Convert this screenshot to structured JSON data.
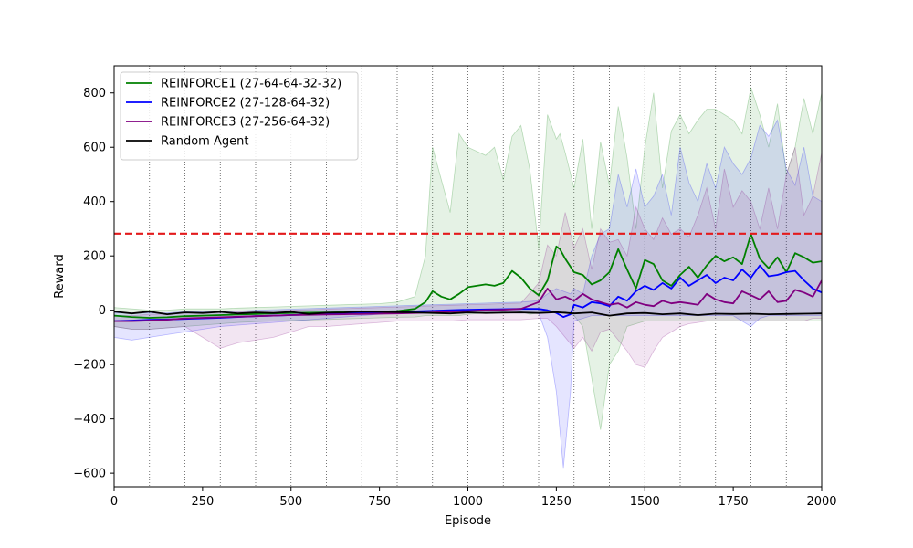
{
  "chart_data": {
    "type": "line",
    "title": "",
    "xlabel": "Episode",
    "ylabel": "Reward",
    "xlim": [
      0,
      2000
    ],
    "ylim": [
      -650,
      900
    ],
    "x_ticks": [
      0,
      250,
      500,
      750,
      1000,
      1250,
      1500,
      1750,
      2000
    ],
    "y_ticks": [
      -600,
      -400,
      -200,
      0,
      200,
      400,
      600,
      800
    ],
    "x_tick_labels": [
      "0",
      "250",
      "500",
      "750",
      "1000",
      "1250",
      "1500",
      "1750",
      "2000"
    ],
    "y_tick_labels": [
      "−600",
      "−400",
      "−200",
      "0",
      "200",
      "400",
      "600",
      "800"
    ],
    "vertical_markers": [
      100,
      200,
      300,
      400,
      500,
      600,
      700,
      800,
      900,
      1000,
      1100,
      1200,
      1300,
      1400,
      1500,
      1600,
      1700,
      1800,
      1900
    ],
    "threshold": 282,
    "legend_position": "upper-left",
    "grid": false,
    "series": [
      {
        "name": "REINFORCE1 (27-64-64-32-32)",
        "color": "#008000",
        "x": [
          0,
          50,
          100,
          150,
          200,
          250,
          300,
          350,
          400,
          450,
          500,
          550,
          600,
          650,
          700,
          750,
          800,
          850,
          880,
          900,
          925,
          950,
          975,
          1000,
          1050,
          1075,
          1100,
          1125,
          1150,
          1175,
          1200,
          1225,
          1250,
          1260,
          1275,
          1300,
          1325,
          1350,
          1375,
          1400,
          1425,
          1450,
          1475,
          1500,
          1525,
          1550,
          1575,
          1600,
          1625,
          1650,
          1675,
          1700,
          1725,
          1750,
          1775,
          1800,
          1825,
          1850,
          1875,
          1900,
          1925,
          1950,
          1975,
          2000
        ],
        "y": [
          -20,
          -25,
          -28,
          -26,
          -22,
          -20,
          -18,
          -16,
          -14,
          -12,
          -10,
          -9,
          -8,
          -7,
          -6,
          -5,
          -3,
          5,
          30,
          70,
          50,
          40,
          60,
          85,
          95,
          90,
          100,
          145,
          120,
          80,
          55,
          110,
          235,
          225,
          190,
          140,
          130,
          95,
          110,
          140,
          225,
          150,
          80,
          185,
          170,
          110,
          90,
          130,
          160,
          120,
          165,
          200,
          180,
          195,
          170,
          280,
          190,
          155,
          195,
          140,
          210,
          195,
          175,
          180
        ],
        "upper": [
          10,
          5,
          0,
          0,
          5,
          5,
          5,
          8,
          10,
          12,
          14,
          16,
          18,
          20,
          22,
          24,
          30,
          50,
          200,
          600,
          480,
          360,
          650,
          600,
          570,
          600,
          480,
          640,
          680,
          520,
          230,
          720,
          630,
          650,
          580,
          450,
          630,
          300,
          620,
          460,
          750,
          560,
          300,
          600,
          800,
          450,
          660,
          720,
          650,
          700,
          740,
          740,
          720,
          700,
          650,
          820,
          720,
          600,
          760,
          500,
          600,
          780,
          650,
          800
        ],
        "lower": [
          -60,
          -70,
          -70,
          -65,
          -60,
          -55,
          -50,
          -45,
          -42,
          -40,
          -38,
          -36,
          -34,
          -32,
          -30,
          -28,
          -26,
          -25,
          -20,
          -20,
          -20,
          -20,
          -20,
          -15,
          -10,
          -10,
          -5,
          -10,
          -5,
          -15,
          -10,
          -10,
          -5,
          -10,
          -5,
          -20,
          -60,
          -250,
          -440,
          -200,
          -150,
          -60,
          -50,
          -40,
          -40,
          -40,
          -40,
          -40,
          -40,
          -40,
          -40,
          -40,
          -40,
          -40,
          -40,
          -40,
          -40,
          -40,
          -40,
          -40,
          -40,
          -40,
          -40,
          -40
        ]
      },
      {
        "name": "REINFORCE2 (27-128-64-32)",
        "color": "#0000ff",
        "x": [
          0,
          50,
          100,
          150,
          200,
          250,
          300,
          350,
          400,
          450,
          500,
          550,
          600,
          650,
          700,
          750,
          800,
          850,
          900,
          950,
          1000,
          1050,
          1100,
          1150,
          1200,
          1225,
          1250,
          1270,
          1290,
          1300,
          1325,
          1350,
          1375,
          1400,
          1425,
          1450,
          1475,
          1500,
          1525,
          1550,
          1575,
          1600,
          1625,
          1650,
          1675,
          1700,
          1725,
          1750,
          1775,
          1800,
          1825,
          1850,
          1875,
          1900,
          1925,
          1950,
          1975,
          2000
        ],
        "y": [
          -40,
          -38,
          -35,
          -34,
          -32,
          -30,
          -28,
          -25,
          -22,
          -20,
          -18,
          -16,
          -14,
          -12,
          -10,
          -8,
          -6,
          -4,
          -2,
          0,
          2,
          3,
          4,
          5,
          5,
          0,
          -10,
          -25,
          -15,
          20,
          10,
          30,
          25,
          15,
          50,
          35,
          70,
          90,
          75,
          100,
          80,
          120,
          90,
          110,
          130,
          100,
          120,
          110,
          150,
          120,
          165,
          125,
          130,
          140,
          145,
          110,
          80,
          65
        ],
        "upper": [
          -10,
          -10,
          -10,
          -10,
          -5,
          -5,
          -5,
          -3,
          0,
          2,
          4,
          6,
          8,
          10,
          12,
          14,
          16,
          18,
          20,
          22,
          24,
          26,
          28,
          30,
          35,
          60,
          80,
          70,
          60,
          80,
          60,
          200,
          280,
          300,
          500,
          380,
          520,
          380,
          420,
          500,
          350,
          600,
          470,
          400,
          540,
          450,
          600,
          540,
          500,
          560,
          680,
          640,
          700,
          520,
          460,
          600,
          420,
          400
        ],
        "lower": [
          -100,
          -110,
          -100,
          -90,
          -80,
          -70,
          -60,
          -55,
          -50,
          -45,
          -40,
          -35,
          -30,
          -25,
          -20,
          -15,
          -10,
          -10,
          -10,
          -10,
          -10,
          -10,
          -10,
          -10,
          -10,
          -100,
          -300,
          -580,
          -300,
          -40,
          -30,
          -20,
          -20,
          -20,
          -20,
          -20,
          -20,
          -20,
          -20,
          -20,
          -20,
          -20,
          -20,
          -20,
          -20,
          -20,
          -20,
          -20,
          -40,
          -60,
          -30,
          -20,
          -20,
          -20,
          -20,
          -20,
          -20,
          -20
        ]
      },
      {
        "name": "REINFORCE3 (27-256-64-32)",
        "color": "#800080",
        "x": [
          0,
          50,
          100,
          150,
          200,
          250,
          300,
          350,
          400,
          450,
          500,
          550,
          600,
          650,
          700,
          750,
          800,
          850,
          900,
          950,
          1000,
          1050,
          1100,
          1150,
          1200,
          1225,
          1250,
          1275,
          1300,
          1325,
          1350,
          1375,
          1400,
          1425,
          1450,
          1475,
          1500,
          1525,
          1550,
          1575,
          1600,
          1625,
          1650,
          1675,
          1700,
          1725,
          1750,
          1775,
          1800,
          1825,
          1850,
          1875,
          1900,
          1925,
          1950,
          1975,
          2000
        ],
        "y": [
          -40,
          -40,
          -38,
          -35,
          -30,
          -28,
          -26,
          -24,
          -22,
          -20,
          -18,
          -17,
          -16,
          -15,
          -14,
          -13,
          -12,
          -10,
          -8,
          -5,
          -3,
          0,
          2,
          5,
          30,
          80,
          40,
          50,
          35,
          60,
          40,
          30,
          20,
          25,
          10,
          30,
          20,
          15,
          35,
          25,
          30,
          25,
          20,
          60,
          40,
          30,
          25,
          70,
          55,
          40,
          70,
          30,
          35,
          75,
          65,
          50,
          110
        ],
        "upper": [
          -20,
          -20,
          -15,
          -15,
          -10,
          -10,
          -8,
          -6,
          -4,
          -2,
          0,
          2,
          4,
          6,
          8,
          10,
          12,
          14,
          16,
          18,
          20,
          22,
          24,
          26,
          100,
          240,
          200,
          360,
          230,
          300,
          150,
          300,
          250,
          260,
          200,
          380,
          300,
          260,
          340,
          280,
          300,
          270,
          350,
          450,
          300,
          520,
          380,
          440,
          400,
          300,
          450,
          300,
          500,
          600,
          350,
          420,
          580
        ],
        "lower": [
          -60,
          -70,
          -70,
          -65,
          -60,
          -100,
          -140,
          -120,
          -110,
          -100,
          -80,
          -60,
          -60,
          -55,
          -50,
          -45,
          -40,
          -40,
          -40,
          -40,
          -35,
          -35,
          -35,
          -35,
          -30,
          -30,
          -60,
          -100,
          -140,
          -100,
          -150,
          -80,
          -70,
          -110,
          -150,
          -200,
          -210,
          -150,
          -100,
          -80,
          -60,
          -50,
          -45,
          -40,
          -40,
          -40,
          -40,
          -40,
          -40,
          -40,
          -40,
          -40,
          -40,
          -40,
          -40,
          -30,
          -30
        ]
      },
      {
        "name": "Random Agent",
        "color": "#000000",
        "x": [
          0,
          50,
          100,
          150,
          200,
          250,
          300,
          350,
          400,
          450,
          500,
          550,
          600,
          650,
          700,
          750,
          800,
          850,
          900,
          950,
          1000,
          1050,
          1100,
          1150,
          1200,
          1250,
          1300,
          1350,
          1400,
          1450,
          1500,
          1550,
          1600,
          1650,
          1700,
          1750,
          1800,
          1850,
          1900,
          1950,
          2000
        ],
        "y": [
          -5,
          -12,
          -5,
          -15,
          -8,
          -10,
          -6,
          -12,
          -8,
          -10,
          -6,
          -14,
          -9,
          -8,
          -5,
          -6,
          -7,
          -8,
          -10,
          -12,
          -8,
          -10,
          -9,
          -8,
          -10,
          -7,
          -12,
          -8,
          -20,
          -12,
          -10,
          -15,
          -12,
          -18,
          -13,
          -14,
          -13,
          -15,
          -14,
          -13,
          -12
        ]
      }
    ]
  }
}
